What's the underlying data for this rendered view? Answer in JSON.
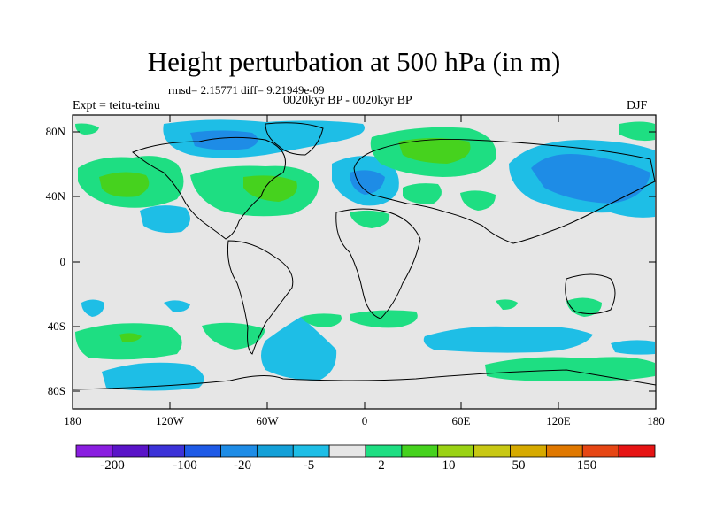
{
  "title": "Height perturbation at 500 hPa (in m)",
  "stats_text": "rmsd= 2.15771 diff= 9.21949e-09",
  "experiment_label": "Expt = teitu-teinu",
  "period_label": "0020kyr BP - 0020kyr BP",
  "season_label": "DJF",
  "lat_ticks": [
    "80N",
    "40N",
    "0",
    "40S",
    "80S"
  ],
  "lon_ticks": [
    "180",
    "120W",
    "60W",
    "0",
    "60E",
    "120E",
    "180"
  ],
  "colorbar": {
    "labels": [
      "-200",
      "-100",
      "-20",
      "-5",
      "2",
      "10",
      "50",
      "150"
    ],
    "colors": [
      "#8a1ee0",
      "#5a14c8",
      "#3c32d8",
      "#1e5ae6",
      "#1e8ce6",
      "#14a0d8",
      "#1ebee6",
      "#e6e6e6",
      "#1ede82",
      "#46d21e",
      "#9ad214",
      "#c8c814",
      "#d6aa00",
      "#e07800",
      "#e64614",
      "#e61414"
    ]
  },
  "colors": {
    "background_field": "#e6e6e6",
    "positive_light": "#1ede82",
    "positive_strong": "#46d21e",
    "negative_light": "#1ebee6",
    "negative_strong": "#1e8ce6"
  }
}
